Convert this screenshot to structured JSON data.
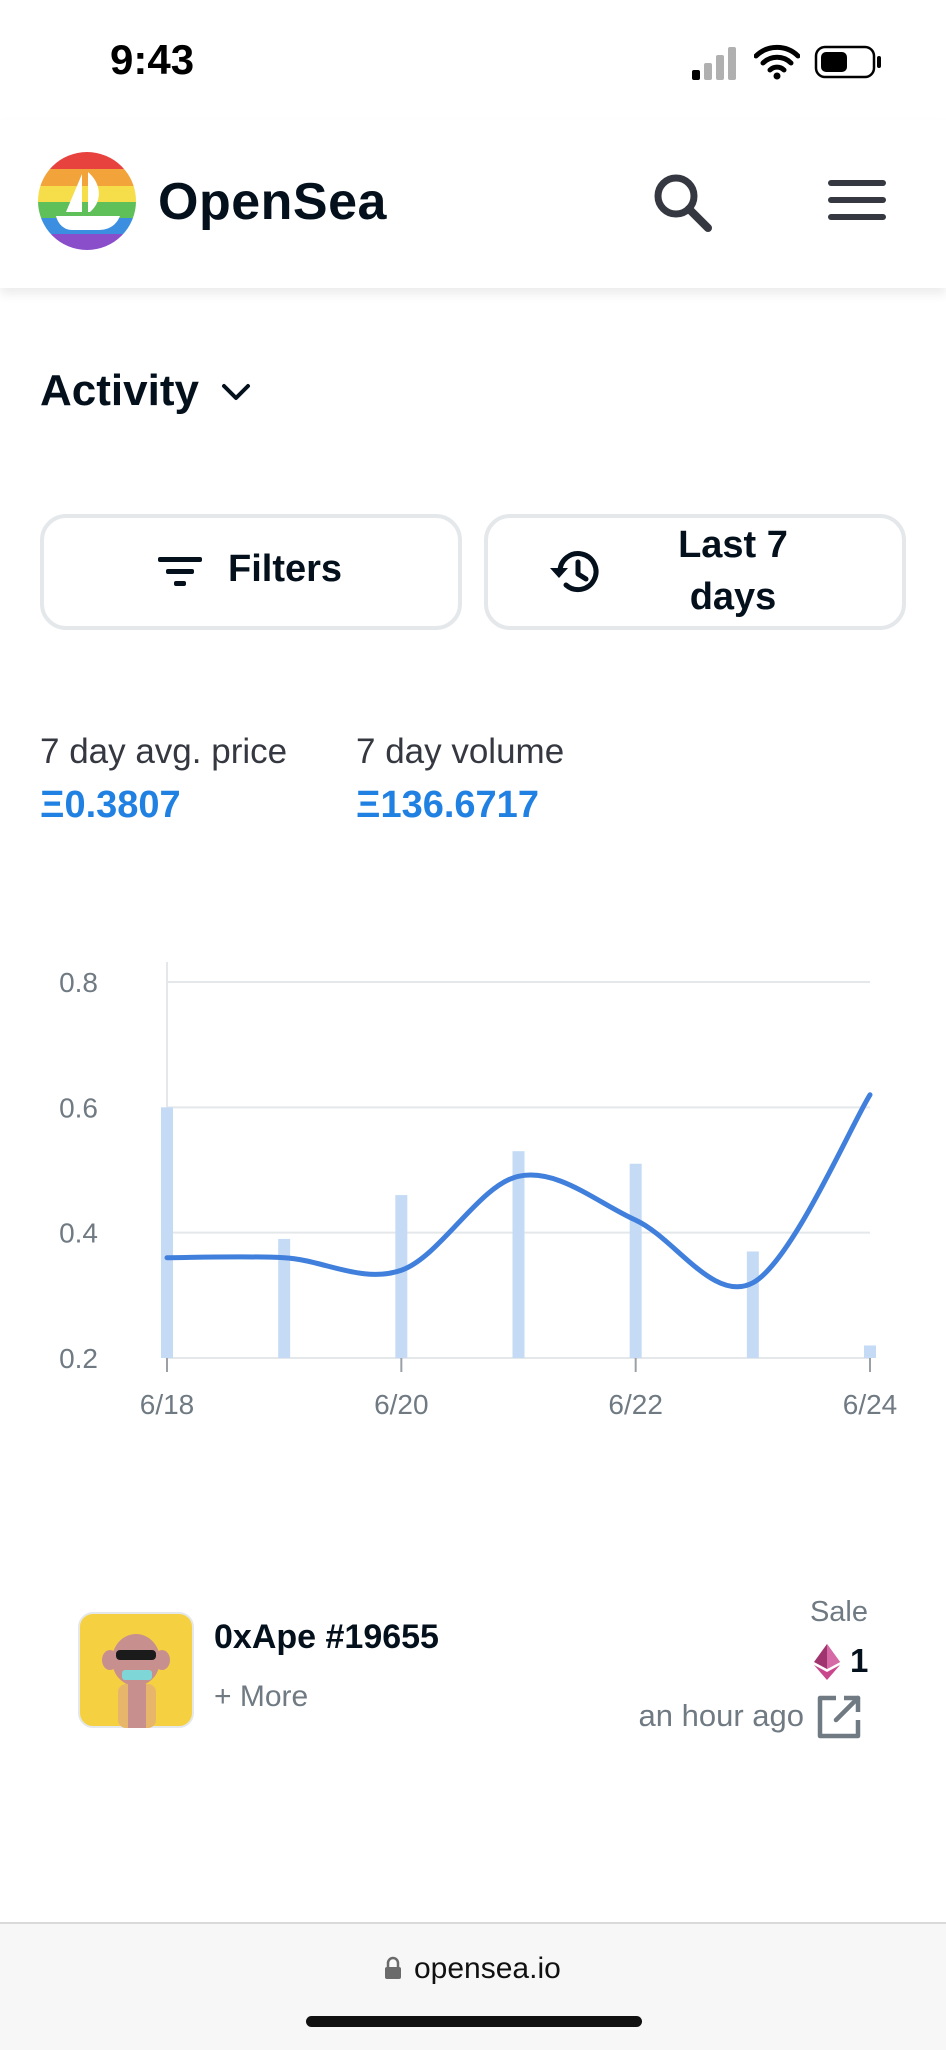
{
  "status_bar": {
    "time": "9:43"
  },
  "header": {
    "brand": "OpenSea",
    "search_icon": "search-icon",
    "menu_icon": "hamburger-menu-icon"
  },
  "activity": {
    "title": "Activity",
    "filters_label": "Filters",
    "range_label_line1": "Last 7",
    "range_label_line2": "days"
  },
  "stats": {
    "avg_price_label": "7 day avg. price",
    "avg_price_value": "Ξ0.3807",
    "volume_label": "7 day volume",
    "volume_value": "Ξ136.6717"
  },
  "chart_data": {
    "type": "line",
    "x": [
      "6/18",
      "6/19",
      "6/20",
      "6/21",
      "6/22",
      "6/23",
      "6/24"
    ],
    "xtick_labels": [
      "6/18",
      "6/20",
      "6/22",
      "6/24"
    ],
    "yticks": [
      0.2,
      0.4,
      0.6,
      0.8
    ],
    "ylim": [
      0.2,
      0.8
    ],
    "series": [
      {
        "kind": "line",
        "values": [
          0.36,
          0.36,
          0.34,
          0.49,
          0.42,
          0.32,
          0.62
        ]
      },
      {
        "kind": "bar",
        "values": [
          0.6,
          0.39,
          0.46,
          0.53,
          0.51,
          0.37,
          0.22
        ]
      }
    ],
    "colors": {
      "line": "#407fdb",
      "bar": "#c5dbf5",
      "grid": "#e5e8eb"
    }
  },
  "event": {
    "item_name": "0xApe #19655",
    "more_label": "+ More",
    "event_type": "Sale",
    "price": "1",
    "time": "an hour ago",
    "price_icon": "ethereum-icon",
    "link_icon": "external-link-icon"
  },
  "browser": {
    "url": "opensea.io"
  }
}
